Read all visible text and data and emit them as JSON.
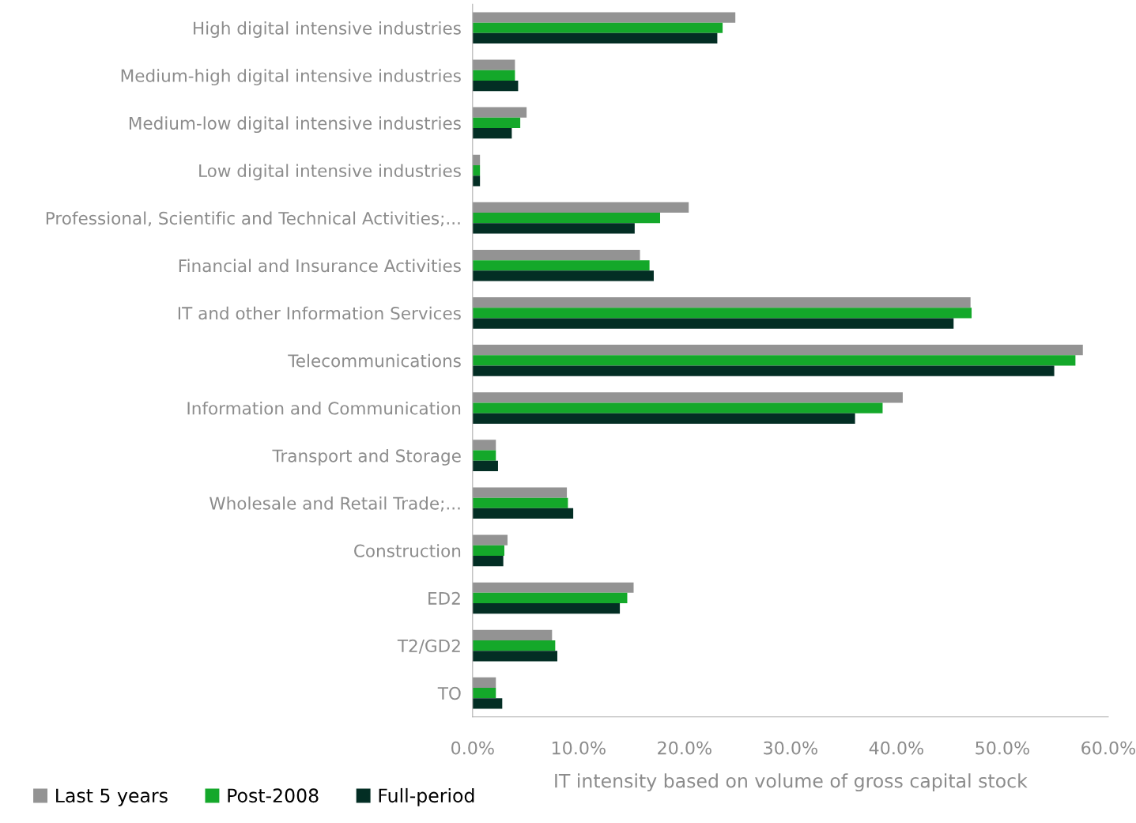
{
  "chart_data": {
    "type": "bar",
    "orientation": "horizontal",
    "xlabel": "IT intensity based on volume of gross capital stock",
    "categories": [
      "High digital intensive industries",
      "Medium-high digital intensive industries",
      "Medium-low digital intensive industries",
      "Low digital intensive industries",
      "Professional, Scientific and Technical Activities;...",
      "Financial and Insurance Activities",
      "IT and other Information Services",
      "Telecommunications",
      "Information and Communication",
      "Transport and Storage",
      "Wholesale and Retail Trade;...",
      "Construction",
      "ED2",
      "T2/GD2",
      "TO"
    ],
    "series": [
      {
        "name": "Last 5 years",
        "color": "#939393",
        "values": [
          24.8,
          4.0,
          5.1,
          0.7,
          20.4,
          15.8,
          47.0,
          57.6,
          40.6,
          2.2,
          8.9,
          3.3,
          15.2,
          7.5,
          2.2
        ]
      },
      {
        "name": "Post-2008",
        "color": "#14a82a",
        "values": [
          23.6,
          4.0,
          4.5,
          0.7,
          17.7,
          16.7,
          47.1,
          56.9,
          38.7,
          2.2,
          9.0,
          3.0,
          14.6,
          7.8,
          2.2
        ]
      },
      {
        "name": "Full-period",
        "color": "#032e24",
        "values": [
          23.1,
          4.3,
          3.7,
          0.7,
          15.3,
          17.1,
          45.4,
          54.9,
          36.1,
          2.4,
          9.5,
          2.9,
          13.9,
          8.0,
          2.8
        ]
      }
    ],
    "xlim": [
      0,
      60
    ],
    "xticks": [
      {
        "value": 0,
        "label": "0.0%"
      },
      {
        "value": 10,
        "label": "10.0%"
      },
      {
        "value": 20,
        "label": "20.0%"
      },
      {
        "value": 30,
        "label": "30.0%"
      },
      {
        "value": 40,
        "label": "40.0%"
      },
      {
        "value": 50,
        "label": "50.0%"
      },
      {
        "value": 60,
        "label": "60.0%"
      }
    ],
    "grid": false,
    "legend": "bottom left"
  }
}
